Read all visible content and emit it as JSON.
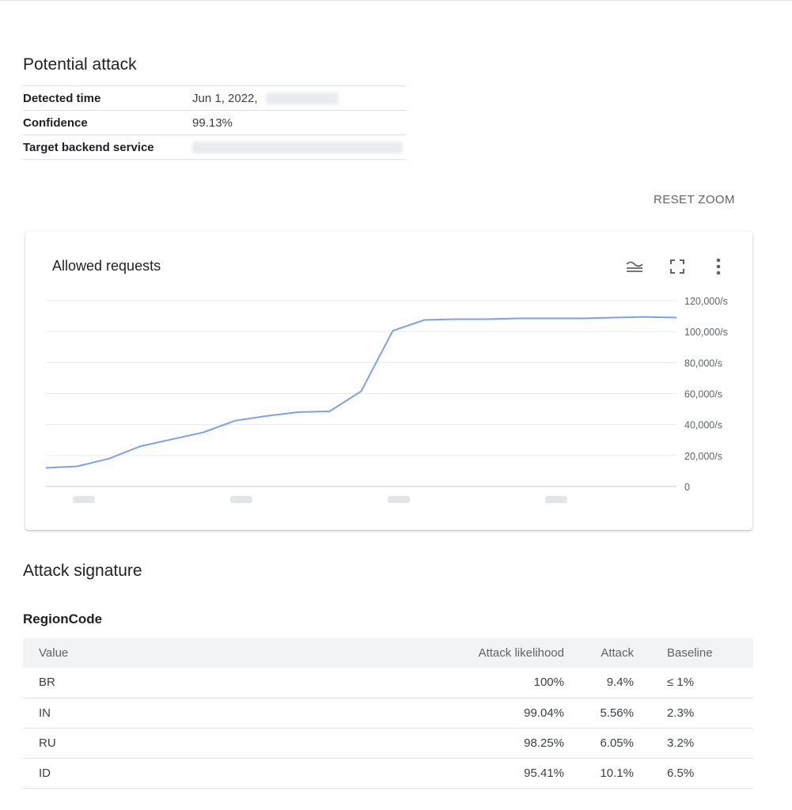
{
  "potential_attack": {
    "title": "Potential attack",
    "rows": [
      {
        "label": "Detected time",
        "value": "Jun 1, 2022,",
        "redacted": true
      },
      {
        "label": "Confidence",
        "value": "99.13%",
        "redacted": false
      },
      {
        "label": "Target backend service",
        "value": "",
        "redacted": true
      }
    ]
  },
  "reset_zoom_label": "RESET ZOOM",
  "chart_card": {
    "title": "Allowed requests",
    "icons": [
      "legend-toggle-icon",
      "fullscreen-icon",
      "more-vert-icon"
    ]
  },
  "chart_data": {
    "type": "line",
    "title": "Allowed requests",
    "xlabel": "",
    "ylabel": "",
    "x_tick_labels_redacted": true,
    "y_ticks": [
      "0",
      "20,000/s",
      "40,000/s",
      "60,000/s",
      "80,000/s",
      "100,000/s",
      "120,000/s"
    ],
    "ylim": [
      0,
      120000
    ],
    "grid": true,
    "series": [
      {
        "color": "#7ba0f0",
        "values": [
          12000,
          13000,
          18000,
          26000,
          30500,
          35000,
          42500,
          45500,
          48000,
          48500,
          61500,
          100500,
          107500,
          108000,
          108000,
          108500,
          108500,
          108500,
          109000,
          109500,
          109000
        ]
      }
    ]
  },
  "attack_signature": {
    "title": "Attack signature",
    "group_title": "RegionCode",
    "columns": [
      "Value",
      "Attack likelihood",
      "Attack",
      "Baseline"
    ],
    "rows": [
      [
        "BR",
        "100%",
        "9.4%",
        "≤ 1%"
      ],
      [
        "IN",
        "99.04%",
        "5.56%",
        "2.3%"
      ],
      [
        "RU",
        "98.25%",
        "6.05%",
        "3.2%"
      ],
      [
        "ID",
        "95.41%",
        "10.1%",
        "6.5%"
      ]
    ]
  },
  "colors": {
    "line": "#7ba0f0",
    "grid": "#e8eaed",
    "header_bg": "#f1f3f4"
  }
}
